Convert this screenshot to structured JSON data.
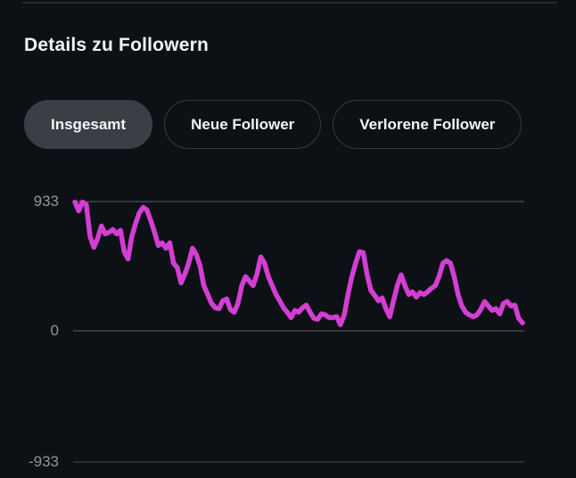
{
  "header": {
    "title": "Details zu Followern"
  },
  "filters": {
    "items": [
      {
        "label": "Insgesamt",
        "selected": true
      },
      {
        "label": "Neue Follower",
        "selected": false
      },
      {
        "label": "Verlorene Follower",
        "selected": false
      }
    ]
  },
  "colors": {
    "background": "#0d1116",
    "accent": "#d33ed3",
    "grid": "#3c4046",
    "axis_label": "#8f959b",
    "title_text": "#f2f4f6",
    "pill_selected_bg": "#3a3f45",
    "pill_border": "#363b41",
    "pill_text": "#f4f6f7",
    "divider": "#262b31"
  },
  "chart_data": {
    "type": "line",
    "title": "",
    "xlabel": "",
    "ylabel": "",
    "ylim": [
      -933,
      933
    ],
    "y_ticks": [
      "933",
      "0",
      "-933"
    ],
    "y_tick_values": [
      933,
      0,
      -933
    ],
    "grid": "horizontal-only",
    "legend": "none",
    "series": [
      {
        "name": "Insgesamt",
        "color": "#d33ed3",
        "values": [
          930,
          866,
          930,
          911,
          681,
          604,
          668,
          757,
          700,
          712,
          732,
          700,
          725,
          572,
          521,
          681,
          776,
          853,
          891,
          872,
          796,
          712,
          617,
          636,
          597,
          636,
          489,
          457,
          348,
          412,
          489,
          597,
          553,
          470,
          329,
          265,
          201,
          169,
          163,
          220,
          233,
          157,
          137,
          201,
          329,
          393,
          361,
          329,
          412,
          534,
          489,
          393,
          329,
          265,
          220,
          169,
          137,
          99,
          150,
          137,
          169,
          188,
          137,
          93,
          86,
          125,
          118,
          99,
          99,
          105,
          48,
          118,
          265,
          393,
          489,
          572,
          566,
          412,
          297,
          259,
          220,
          240,
          163,
          105,
          220,
          329,
          406,
          329,
          265,
          284,
          246,
          278,
          265,
          284,
          310,
          329,
          393,
          489,
          508,
          489,
          393,
          265,
          182,
          137,
          118,
          105,
          118,
          157,
          214,
          182,
          150,
          163,
          125,
          201,
          214,
          182,
          188,
          93,
          61
        ]
      }
    ]
  }
}
